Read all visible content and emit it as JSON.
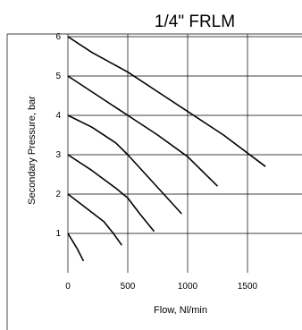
{
  "chart_data": {
    "type": "line",
    "title": "1/4\" FRLM",
    "xlabel": "Flow, Nl/min",
    "ylabel": "Secondary Pressure, bar",
    "xlim": [
      0,
      2000
    ],
    "ylim": [
      0,
      6
    ],
    "x_ticks": [
      0,
      500,
      1000,
      1500
    ],
    "x_tick_labels": [
      "0",
      "500",
      "1000",
      "1500"
    ],
    "y_ticks": [
      1,
      2,
      3,
      4,
      5,
      6
    ],
    "y_tick_labels": [
      "1",
      "2",
      "3",
      "4",
      "5",
      "6"
    ],
    "grid": true,
    "series": [
      {
        "points": [
          [
            0,
            6.0
          ],
          [
            200,
            5.6
          ],
          [
            500,
            5.1
          ],
          [
            800,
            4.5
          ],
          [
            1000,
            4.1
          ],
          [
            1300,
            3.5
          ],
          [
            1650,
            2.7
          ]
        ]
      },
      {
        "points": [
          [
            0,
            5.0
          ],
          [
            250,
            4.5
          ],
          [
            500,
            4.0
          ],
          [
            750,
            3.5
          ],
          [
            1000,
            2.95
          ],
          [
            1250,
            2.2
          ]
        ]
      },
      {
        "points": [
          [
            0,
            4.0
          ],
          [
            200,
            3.7
          ],
          [
            400,
            3.3
          ],
          [
            500,
            3.0
          ],
          [
            650,
            2.5
          ],
          [
            800,
            2.0
          ],
          [
            950,
            1.5
          ]
        ]
      },
      {
        "points": [
          [
            0,
            3.0
          ],
          [
            200,
            2.6
          ],
          [
            400,
            2.15
          ],
          [
            500,
            1.9
          ],
          [
            600,
            1.5
          ],
          [
            720,
            1.05
          ]
        ]
      },
      {
        "points": [
          [
            0,
            2.0
          ],
          [
            150,
            1.65
          ],
          [
            300,
            1.3
          ],
          [
            380,
            1.0
          ],
          [
            450,
            0.7
          ]
        ]
      },
      {
        "points": [
          [
            0,
            1.0
          ],
          [
            80,
            0.6
          ],
          [
            130,
            0.3
          ]
        ]
      }
    ]
  }
}
